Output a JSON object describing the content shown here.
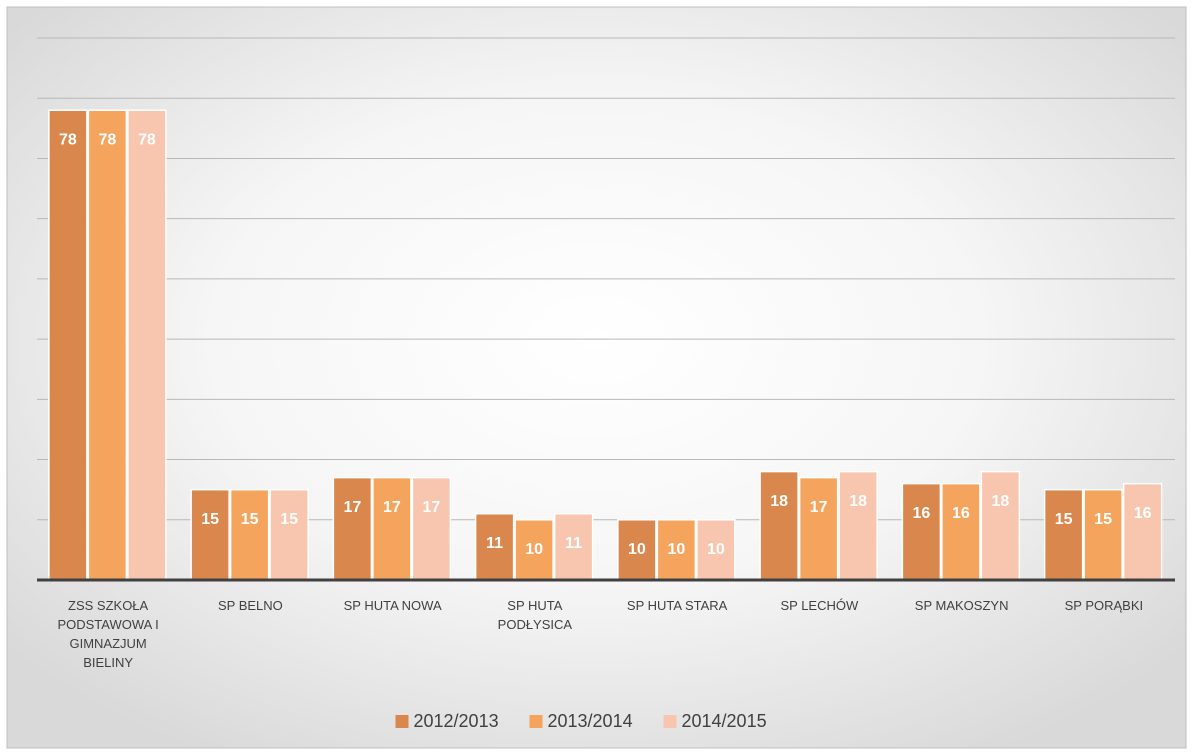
{
  "chart_data": {
    "type": "bar",
    "categories": [
      "ZSS SZKOŁA PODSTAWOWA I GIMNAZJUM BIELINY",
      "SP BELNO",
      "SP HUTA NOWA",
      "SP HUTA PODŁYSICA",
      "SP HUTA STARA",
      "SP LECHÓW",
      "SP MAKOSZYN",
      "SP PORĄBKI"
    ],
    "series": [
      {
        "name": "2012/2013",
        "color": "#d9874c",
        "values": [
          78,
          15,
          17,
          11,
          10,
          18,
          16,
          15
        ]
      },
      {
        "name": "2013/2014",
        "color": "#f4a45c",
        "values": [
          78,
          15,
          17,
          10,
          10,
          17,
          16,
          15
        ]
      },
      {
        "name": "2014/2015",
        "color": "#f8c6ae",
        "values": [
          78,
          15,
          17,
          11,
          10,
          18,
          18,
          16
        ]
      }
    ],
    "ylim": [
      0,
      90
    ],
    "yticks": [
      0,
      10,
      20,
      30,
      40,
      50,
      60,
      70,
      80,
      90
    ],
    "grid": true,
    "legend": "bottom"
  }
}
